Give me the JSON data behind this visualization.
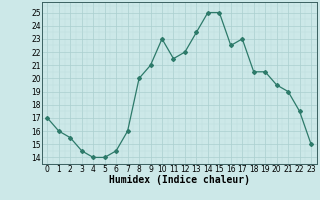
{
  "x": [
    0,
    1,
    2,
    3,
    4,
    5,
    6,
    7,
    8,
    9,
    10,
    11,
    12,
    13,
    14,
    15,
    16,
    17,
    18,
    19,
    20,
    21,
    22,
    23
  ],
  "y": [
    17,
    16,
    15.5,
    14.5,
    14,
    14,
    14.5,
    16,
    20,
    21,
    23,
    21.5,
    22,
    23.5,
    25,
    25,
    22.5,
    23,
    20.5,
    20.5,
    19.5,
    19,
    17.5,
    15
  ],
  "line_color": "#2d7a6a",
  "bg_color": "#cce8e8",
  "grid_color_major": "#aacfcf",
  "grid_color_minor": "#bbdddd",
  "xlabel": "Humidex (Indice chaleur)",
  "xlabel_fontsize": 7,
  "ylabel_ticks": [
    14,
    15,
    16,
    17,
    18,
    19,
    20,
    21,
    22,
    23,
    24,
    25
  ],
  "xlim": [
    -0.5,
    23.5
  ],
  "ylim": [
    13.5,
    25.8
  ],
  "tick_fontsize": 5.5,
  "marker_size": 2.0,
  "line_width": 0.9
}
